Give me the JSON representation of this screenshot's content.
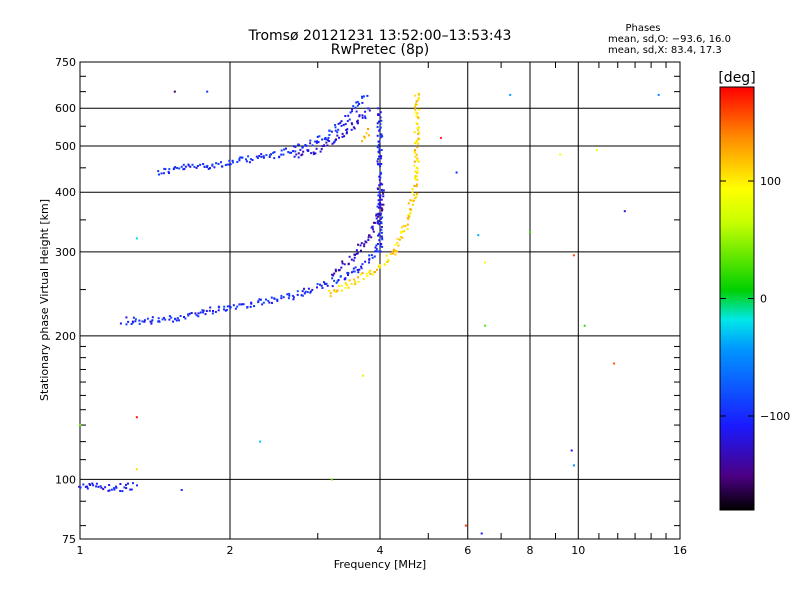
{
  "chart_data": {
    "type": "scatter",
    "title": "Tromsø 20121231 13:52:00–13:53:43",
    "subtitle": "RwPretec (8p)",
    "xlabel": "Frequency [MHz]",
    "ylabel": "Stationary phase Virtual Height [km]",
    "x_scale": "log",
    "y_scale": "log",
    "xlim": [
      1,
      16
    ],
    "ylim": [
      75,
      750
    ],
    "x_ticks": [
      1,
      2,
      4,
      6,
      8,
      10,
      16
    ],
    "x_tick_labels": [
      "1",
      "2",
      "4",
      "6",
      "8",
      "10",
      "16"
    ],
    "y_ticks": [
      75,
      100,
      200,
      300,
      400,
      500,
      600,
      750
    ],
    "y_tick_labels": [
      "75",
      "100",
      "200",
      "300",
      "400",
      "500",
      "600",
      "750"
    ],
    "x_gridlines": [
      1,
      2,
      4,
      6,
      8,
      10,
      16
    ],
    "y_gridlines": [
      75,
      100,
      200,
      300,
      400,
      500,
      600,
      750
    ],
    "x_minor_ticks": [
      3,
      5,
      7,
      9,
      11,
      12,
      13,
      14,
      15
    ],
    "y_minor_ticks": [
      80,
      90,
      110,
      120,
      130,
      140,
      150,
      160,
      170,
      180,
      190,
      250,
      350,
      450,
      550,
      650,
      700
    ],
    "grid": true,
    "legend": {
      "title": "Phases",
      "entries": [
        "mean, sd,O: −93.6, 16.0",
        "mean, sd,X:  83.4, 17.3"
      ],
      "placement": "top-right"
    },
    "colorbar": {
      "label": "[deg]",
      "ticks": [
        100,
        0,
        -100
      ],
      "tick_labels": [
        "100",
        "0",
        "−100"
      ],
      "range": [
        -180,
        180
      ],
      "placement": "right"
    },
    "colormap_stops": [
      [
        "#000000",
        0
      ],
      [
        "#4b0082",
        0.08
      ],
      [
        "#1a1aff",
        0.2
      ],
      [
        "#0096ff",
        0.38
      ],
      [
        "#00e8e8",
        0.45
      ],
      [
        "#00d000",
        0.52
      ],
      [
        "#c8ff00",
        0.68
      ],
      [
        "#ffff00",
        0.76
      ],
      [
        "#ff8c00",
        0.88
      ],
      [
        "#ff0000",
        1
      ]
    ],
    "series": [
      {
        "trace": "upper O-trace",
        "phase": -100,
        "points": [
          [
            1.43,
            440
          ],
          [
            1.6,
            450
          ],
          [
            1.8,
            455
          ],
          [
            2.0,
            460
          ],
          [
            2.2,
            470
          ],
          [
            2.5,
            480
          ],
          [
            2.8,
            500
          ],
          [
            3.1,
            520
          ],
          [
            3.4,
            560
          ],
          [
            3.65,
            620
          ],
          [
            3.75,
            640
          ]
        ]
      },
      {
        "trace": "upper O-trace lower branch",
        "phase": -120,
        "points": [
          [
            2.7,
            480
          ],
          [
            3.0,
            490
          ],
          [
            3.3,
            520
          ],
          [
            3.6,
            560
          ],
          [
            3.8,
            600
          ]
        ]
      },
      {
        "trace": "upper X-trace",
        "phase": 115,
        "points": [
          [
            3.7,
            520
          ],
          [
            3.8,
            540
          ]
        ]
      },
      {
        "trace": "upper O-trace vertical",
        "phase": -105,
        "points": [
          [
            4.0,
            300
          ],
          [
            4.0,
            350
          ],
          [
            4.0,
            400
          ],
          [
            4.0,
            450
          ],
          [
            4.0,
            500
          ],
          [
            4.0,
            550
          ],
          [
            4.0,
            600
          ]
        ]
      },
      {
        "trace": "lower O-trace",
        "phase": -100,
        "points": [
          [
            1.22,
            215
          ],
          [
            1.35,
            215
          ],
          [
            1.5,
            216
          ],
          [
            1.7,
            222
          ],
          [
            1.9,
            228
          ],
          [
            2.1,
            232
          ],
          [
            2.4,
            236
          ],
          [
            2.7,
            243
          ],
          [
            3.0,
            252
          ],
          [
            3.3,
            262
          ],
          [
            3.6,
            275
          ],
          [
            3.85,
            293
          ],
          [
            3.95,
            310
          ]
        ]
      },
      {
        "trace": "lower O-trace high branch",
        "phase": -130,
        "points": [
          [
            3.2,
            270
          ],
          [
            3.5,
            290
          ],
          [
            3.8,
            320
          ],
          [
            4.0,
            360
          ],
          [
            4.05,
            400
          ]
        ]
      },
      {
        "trace": "lower X-trace",
        "phase": 110,
        "points": [
          [
            3.15,
            245
          ],
          [
            3.4,
            255
          ],
          [
            3.7,
            265
          ],
          [
            4.0,
            280
          ],
          [
            4.3,
            300
          ],
          [
            4.5,
            340
          ],
          [
            4.7,
            400
          ],
          [
            4.75,
            500
          ],
          [
            4.75,
            650
          ]
        ]
      },
      {
        "trace": "E-layer trace",
        "phase": -110,
        "points": [
          [
            1.0,
            98
          ],
          [
            1.05,
            97
          ],
          [
            1.1,
            96
          ],
          [
            1.2,
            96
          ],
          [
            1.3,
            97
          ]
        ]
      },
      {
        "trace": "scattered points",
        "phase": null,
        "points": [
          [
            1.55,
            650
          ],
          [
            1.8,
            650
          ],
          [
            1.3,
            320
          ],
          [
            1.0,
            130
          ],
          [
            1.3,
            105
          ],
          [
            1.3,
            135
          ],
          [
            1.6,
            95
          ],
          [
            2.3,
            120
          ],
          [
            3.2,
            100
          ],
          [
            3.7,
            165
          ],
          [
            5.3,
            520
          ],
          [
            5.7,
            440
          ],
          [
            6.3,
            325
          ],
          [
            6.5,
            210
          ],
          [
            6.5,
            285
          ],
          [
            5.95,
            80
          ],
          [
            6.4,
            77
          ],
          [
            7.3,
            640
          ],
          [
            8.0,
            330
          ],
          [
            9.2,
            480
          ],
          [
            9.8,
            295
          ],
          [
            9.7,
            115
          ],
          [
            9.8,
            107
          ],
          [
            10.3,
            210
          ],
          [
            10.9,
            490
          ],
          [
            11.8,
            175
          ],
          [
            12.4,
            365
          ],
          [
            14.5,
            640
          ]
        ]
      }
    ]
  }
}
